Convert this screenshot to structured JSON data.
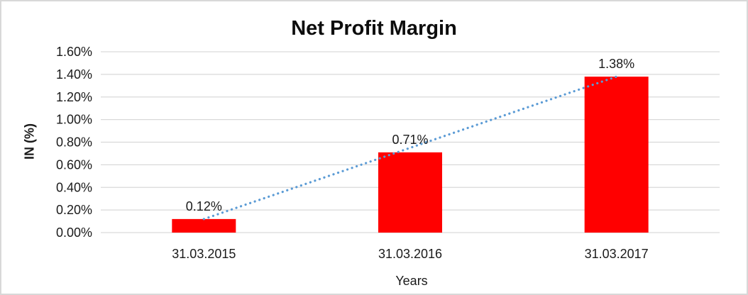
{
  "chart_data": {
    "type": "bar",
    "title": "Net Profit Margin",
    "xlabel": "Years",
    "ylabel": "IN (%)",
    "categories": [
      "31.03.2015",
      "31.03.2016",
      "31.03.2017"
    ],
    "values": [
      0.12,
      0.71,
      1.38
    ],
    "data_labels": [
      "0.12%",
      "0.71%",
      "1.38%"
    ],
    "y_ticks": [
      "1.60%",
      "1.40%",
      "1.20%",
      "1.00%",
      "0.80%",
      "0.60%",
      "0.40%",
      "0.20%",
      "0.00%"
    ],
    "ylim": [
      0,
      1.6
    ],
    "grid": true,
    "legend": "none",
    "colors": {
      "bar": "#ff0000",
      "trendline": "#5b9bd5",
      "gridline": "#d9d9d9",
      "text": "#1a1a1a"
    },
    "trendline": {
      "style": "dotted",
      "from_category_index": 0,
      "from_value": 0.12,
      "to_category_index": 2,
      "to_value": 1.38
    }
  }
}
